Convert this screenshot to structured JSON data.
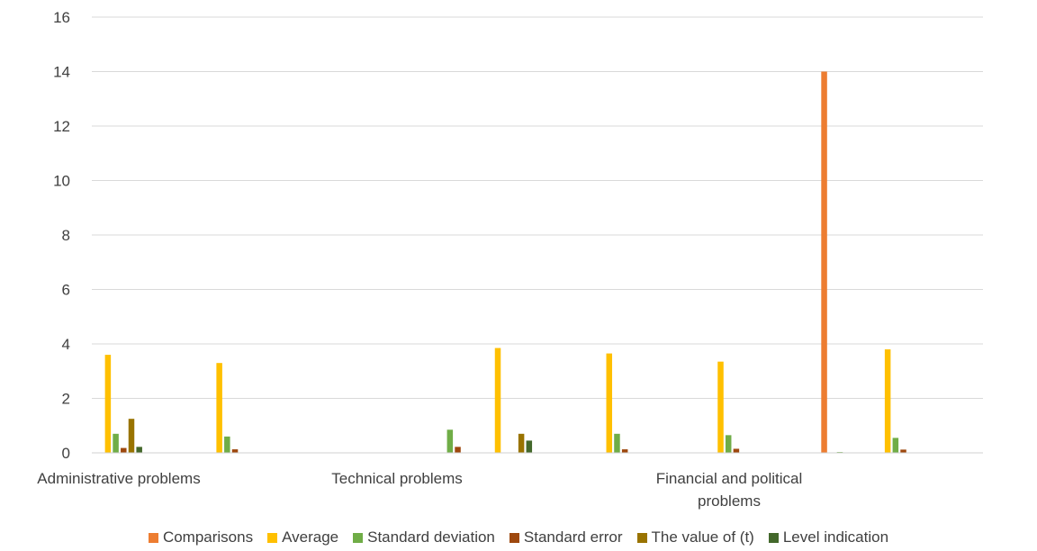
{
  "chart_data": {
    "type": "bar",
    "ylim": [
      0,
      16
    ],
    "y_ticks": [
      "0",
      "2",
      "4",
      "6",
      "8",
      "10",
      "12",
      "14",
      "16"
    ],
    "grid": true,
    "legend_position": "bottom",
    "category_labels": [
      {
        "id": "admin",
        "lines": [
          "Administrative problems"
        ]
      },
      {
        "id": "tech",
        "lines": [
          "Technical problems"
        ]
      },
      {
        "id": "fin",
        "lines": [
          "Financial and political",
          "problems"
        ]
      }
    ],
    "categories": [
      "",
      "",
      "",
      "",
      "",
      "",
      "",
      "",
      "",
      "",
      "",
      "",
      "",
      "",
      "",
      ""
    ],
    "series": [
      {
        "name": "Comparisons",
        "color": "#ED7D31",
        "values": [
          0,
          0,
          0,
          0,
          0,
          0,
          0,
          0,
          0,
          0,
          0,
          0,
          0,
          14,
          0,
          0
        ]
      },
      {
        "name": "Average",
        "color": "#FFC000",
        "values": [
          3.6,
          0,
          3.3,
          0,
          0,
          0,
          0,
          3.85,
          0,
          3.65,
          0,
          3.35,
          0,
          0,
          3.8,
          0
        ]
      },
      {
        "name": "Standard deviation",
        "color": "#70AD47",
        "values": [
          0.7,
          0,
          0.6,
          0,
          0,
          0,
          0.85,
          0,
          0,
          0.7,
          0,
          0.65,
          0,
          0.03,
          0.55,
          0
        ]
      },
      {
        "name": "Standard error",
        "color": "#9E480E",
        "values": [
          0.18,
          0,
          0.13,
          0,
          0,
          0,
          0.22,
          0,
          0,
          0.13,
          0,
          0.15,
          0,
          0,
          0.12,
          0
        ]
      },
      {
        "name": "The value of (t)",
        "color": "#997300",
        "values": [
          1.25,
          0,
          0,
          0,
          0,
          0,
          0,
          0.7,
          0,
          0,
          0,
          0,
          0,
          0,
          0,
          0
        ]
      },
      {
        "name": "Level indication",
        "color": "#43682B",
        "values": [
          0.22,
          0,
          0,
          0,
          0,
          0,
          0,
          0.45,
          0,
          0,
          0,
          0,
          0,
          0,
          0,
          0
        ]
      }
    ]
  }
}
